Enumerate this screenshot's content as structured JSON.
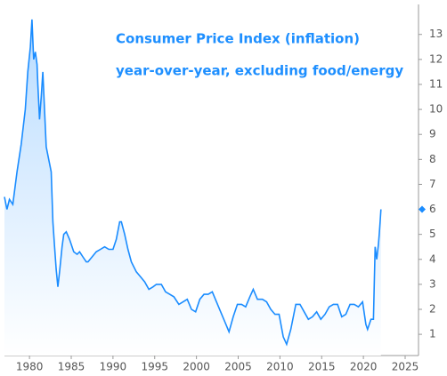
{
  "chart_data": {
    "type": "line",
    "title": "Consumer Price Index (inflation)",
    "subtitle": "year-over-year, excluding food/energy",
    "color": "#1a8cff",
    "x": [
      1977.0,
      1977.3,
      1977.6,
      1978.0,
      1978.5,
      1979.0,
      1979.5,
      1979.8,
      1980.1,
      1980.3,
      1980.5,
      1980.7,
      1980.9,
      1981.0,
      1981.2,
      1981.4,
      1981.6,
      1981.8,
      1982.0,
      1982.3,
      1982.6,
      1982.8,
      1983.0,
      1983.2,
      1983.4,
      1983.6,
      1983.9,
      1984.1,
      1984.4,
      1984.8,
      1985.0,
      1985.3,
      1985.7,
      1986.0,
      1986.4,
      1986.8,
      1987.0,
      1987.5,
      1988.0,
      1988.5,
      1989.0,
      1989.5,
      1990.0,
      1990.4,
      1990.8,
      1991.0,
      1991.4,
      1991.8,
      1992.2,
      1992.8,
      1993.3,
      1993.8,
      1994.3,
      1994.8,
      1995.2,
      1995.8,
      1996.3,
      1996.8,
      1997.3,
      1997.9,
      1998.4,
      1998.9,
      1999.4,
      1999.9,
      2000.4,
      2000.9,
      2001.4,
      2001.9,
      2002.4,
      2002.9,
      2003.4,
      2003.9,
      2004.4,
      2004.9,
      2005.4,
      2005.9,
      2006.4,
      2006.8,
      2007.3,
      2007.9,
      2008.4,
      2008.9,
      2009.4,
      2009.9,
      2010.4,
      2010.8,
      2011.3,
      2011.9,
      2012.4,
      2012.9,
      2013.4,
      2013.9,
      2014.4,
      2014.9,
      2015.4,
      2015.9,
      2016.4,
      2016.9,
      2017.4,
      2017.9,
      2018.4,
      2018.9,
      2019.4,
      2019.9,
      2020.3,
      2020.5,
      2020.9,
      2021.2,
      2021.3,
      2021.4,
      2021.6,
      2021.8,
      2021.9,
      2022.0,
      2022.1
    ],
    "values": [
      6.5,
      6.0,
      6.4,
      6.2,
      7.5,
      8.6,
      10.0,
      11.5,
      12.5,
      13.6,
      12.0,
      12.3,
      11.8,
      11.0,
      9.6,
      10.5,
      11.5,
      10.0,
      8.5,
      8.0,
      7.5,
      5.5,
      4.5,
      3.6,
      2.9,
      3.5,
      4.5,
      5.0,
      5.1,
      4.8,
      4.6,
      4.3,
      4.2,
      4.3,
      4.1,
      3.9,
      3.9,
      4.1,
      4.3,
      4.4,
      4.5,
      4.4,
      4.4,
      4.8,
      5.5,
      5.5,
      5.0,
      4.4,
      3.9,
      3.5,
      3.3,
      3.1,
      2.8,
      2.9,
      3.0,
      3.0,
      2.7,
      2.6,
      2.5,
      2.2,
      2.3,
      2.4,
      2.0,
      1.9,
      2.4,
      2.6,
      2.6,
      2.7,
      2.3,
      1.9,
      1.5,
      1.1,
      1.7,
      2.2,
      2.2,
      2.1,
      2.5,
      2.8,
      2.4,
      2.4,
      2.3,
      2.0,
      1.8,
      1.8,
      0.9,
      0.6,
      1.2,
      2.2,
      2.2,
      1.9,
      1.6,
      1.7,
      1.9,
      1.6,
      1.8,
      2.1,
      2.2,
      2.2,
      1.7,
      1.8,
      2.2,
      2.2,
      2.1,
      2.3,
      1.4,
      1.2,
      1.6,
      1.6,
      3.0,
      4.5,
      4.0,
      4.6,
      5.0,
      5.5,
      6.0
    ],
    "xlim": [
      1977.0,
      2026.6
    ],
    "xticks": [
      1980,
      1985,
      1990,
      1995,
      2000,
      2005,
      2010,
      2015,
      2020,
      2025
    ],
    "ylim": [
      0.15,
      14.2
    ],
    "yticks": [
      1,
      2,
      3,
      4,
      5,
      6,
      7,
      8,
      9,
      10,
      11,
      12,
      13
    ]
  }
}
